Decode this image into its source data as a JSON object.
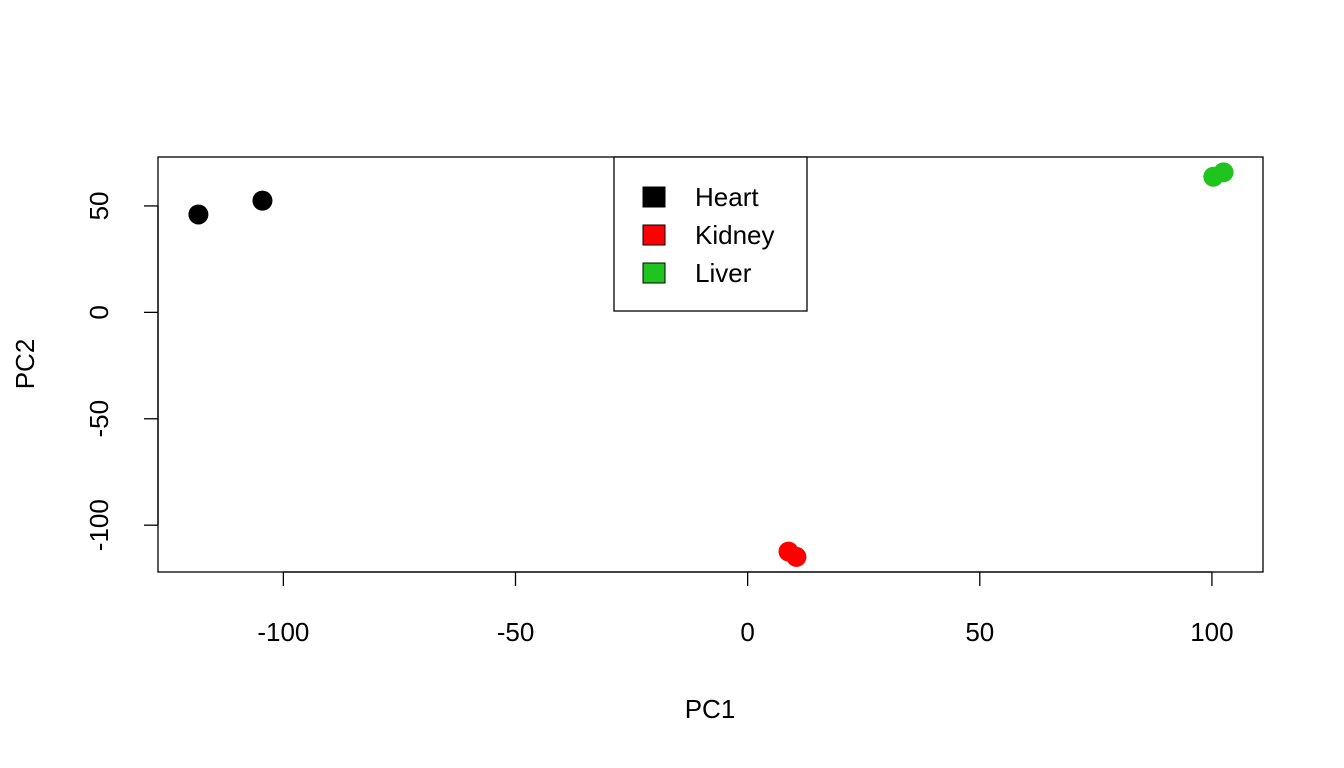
{
  "chart_data": {
    "type": "scatter",
    "xlabel": "PC1",
    "ylabel": "PC2",
    "xlim": [
      -127,
      111
    ],
    "ylim": [
      -122,
      73
    ],
    "xticks": [
      -100,
      -50,
      0,
      50,
      100
    ],
    "yticks": [
      -100,
      -50,
      0,
      50
    ],
    "xtick_labels": [
      "-100",
      "-50",
      "0",
      "50",
      "100"
    ],
    "ytick_labels": [
      "-100",
      "-50",
      "0",
      "50"
    ],
    "grid": false,
    "legend_position": "top-center",
    "series": [
      {
        "name": "Heart",
        "color": "#000000",
        "points": [
          [
            -118.3,
            46.0
          ],
          [
            -104.5,
            52.5
          ]
        ]
      },
      {
        "name": "Kidney",
        "color": "#ff0000",
        "points": [
          [
            8.8,
            -112.4
          ],
          [
            10.5,
            -114.9
          ]
        ]
      },
      {
        "name": "Liver",
        "color": "#1fc41f",
        "points": [
          [
            100.3,
            63.7
          ],
          [
            102.5,
            65.8
          ]
        ]
      }
    ]
  }
}
